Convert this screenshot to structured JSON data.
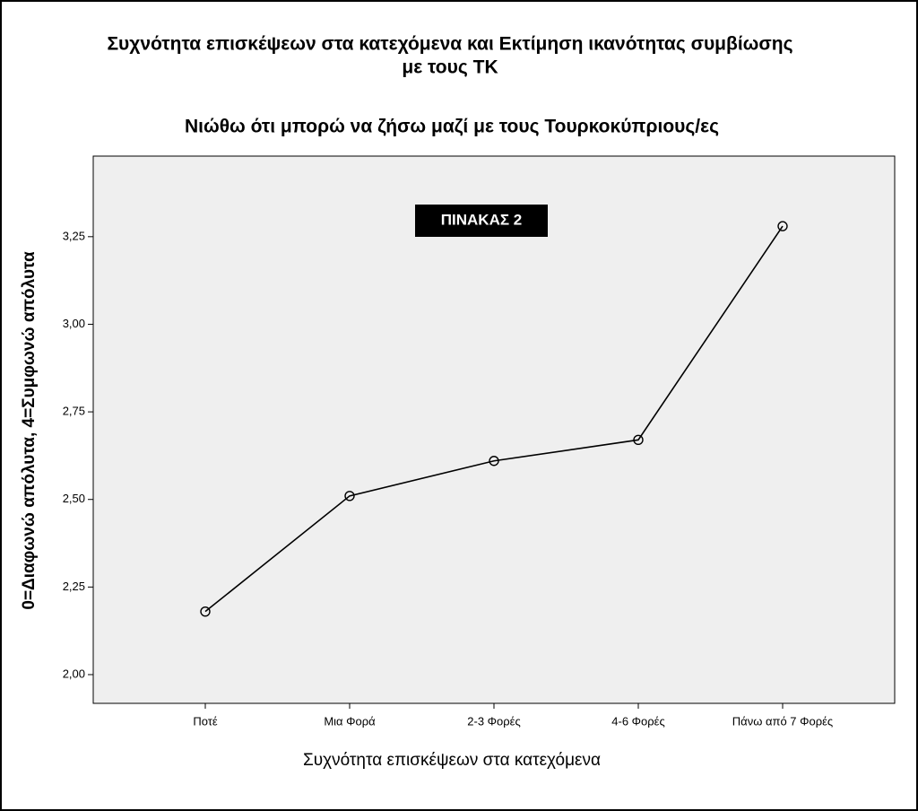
{
  "chart_data": {
    "type": "line",
    "title": [
      "Συχνότητα επισκέψεων στα κατεχόμενα και Εκτίμηση ικανότητας συμβίωσης",
      "με τους ΤΚ"
    ],
    "subtitle": "Νιώθω ότι μπορώ να ζήσω μαζί με τους Τουρκοκύπριους/ες",
    "annotation": "ΠΙΝΑΚΑΣ 2",
    "x_label": "Συχνότητα επισκέψεων στα κατεχόμενα",
    "y_label": "0=Διαφωνώ απόλυτα, 4=Συμφωνώ απόλυτα",
    "categories": [
      "Ποτέ",
      "Μια Φορά",
      "2-3 Φορές",
      "4-6 Φορές",
      "Πάνω από 7 Φορές"
    ],
    "values": [
      2.18,
      2.51,
      2.61,
      2.67,
      3.28
    ],
    "color": "#000000",
    "ylim": [
      1.918,
      3.48
    ],
    "yticks": [
      {
        "value": 2,
        "label": "2,00"
      },
      {
        "value": 2.25,
        "label": "2,25"
      },
      {
        "value": 2.5,
        "label": "2,50"
      },
      {
        "value": 2.75,
        "label": "2,75"
      },
      {
        "value": 3,
        "label": "3,00"
      },
      {
        "value": 3.25,
        "label": "3,25"
      }
    ]
  }
}
